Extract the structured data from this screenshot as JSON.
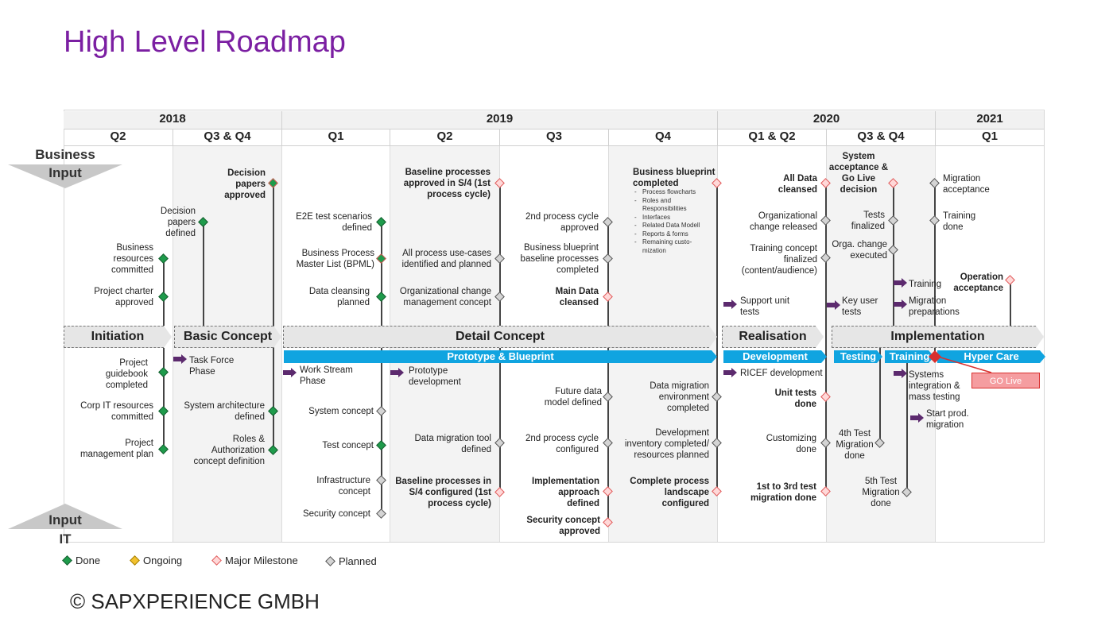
{
  "title": "High Level Roadmap",
  "footer": "© SAPXPERIENCE GMBH",
  "years": [
    "2018",
    "2019",
    "2020",
    "2021"
  ],
  "quarters": [
    "Q2",
    "Q3 & Q4",
    "Q1",
    "Q2",
    "Q3",
    "Q4",
    "Q1 & Q2",
    "Q3 & Q4",
    "Q1"
  ],
  "side_labels": {
    "business_line1": "Business",
    "business_line2": "Input",
    "it_line1": "Input",
    "it_line2": "IT"
  },
  "phases": [
    "Initiation",
    "Basic Concept",
    "Detail Concept",
    "Realisation",
    "Implementation"
  ],
  "workstreams": [
    "Prototype & Blueprint",
    "Development",
    "Testing",
    "Training",
    "Hyper Care"
  ],
  "business_items": {
    "decision_papers_approved": "Decision papers approved",
    "decision_papers_defined": "Decision papers defined",
    "business_resources": "Business resources committed",
    "project_charter": "Project charter approved",
    "e2e_test": "E2E test scenarios defined",
    "bpml": "Business Process Master List (BPML)",
    "data_cleansing_planned": "Data cleansing planned",
    "baseline_approved": "Baseline processes approved in S/4 (1st process cycle)",
    "use_cases": "All process use-cases identified and planned",
    "org_change_concept": "Organizational change management concept",
    "second_cycle_approved": "2nd process cycle approved",
    "blueprint_baseline": "Business blueprint baseline processes completed",
    "main_data_cleansed": "Main Data cleansed",
    "blueprint_completed": "Business blueprint completed",
    "all_data_cleansed": "All Data cleansed",
    "org_change_released": "Organizational change released",
    "training_concept": "Training concept finalized (content/audience)",
    "support_unit_tests": "Support unit tests",
    "system_acceptance": "System acceptance & Go Live decision",
    "tests_finalized": "Tests finalized",
    "orga_change_executed": "Orga. change executed",
    "key_user_tests": "Key user tests",
    "training": "Training",
    "migration_preparations": "Migration preparations",
    "migration_acceptance": "Migration acceptance",
    "training_done": "Training done",
    "operation_acceptance": "Operation acceptance"
  },
  "blueprint_list": [
    "Process flowcharts",
    "Roles and Responsibilities",
    "Interfaces",
    "Related Data Modell",
    "Reports & forms",
    "Remaining custo-mization"
  ],
  "it_items": {
    "project_guidebook": "Project guidebook completed",
    "corp_it": "Corp IT resources committed",
    "project_mgmt_plan": "Project management plan",
    "task_force": "Task Force Phase",
    "system_architecture": "System architecture defined",
    "roles_authorization": "Roles & Authorization concept definition",
    "work_stream": "Work Stream Phase",
    "system_concept": "System concept",
    "test_concept": "Test concept",
    "infrastructure": "Infrastructure concept",
    "security_concept": "Security concept",
    "prototype_dev": "Prototype development",
    "data_migration_tool": "Data migration tool defined",
    "baseline_configured": "Baseline processes in S/4 configured (1st process cycle)",
    "future_data_model": "Future data model defined",
    "second_cycle_configured": "2nd process cycle configured",
    "implementation_approach": "Implementation approach defined",
    "security_concept_approved": "Security concept approved",
    "data_migration_env": "Data migration environment completed",
    "dev_inventory": "Development inventory completed/ resources planned",
    "complete_landscape": "Complete process landscape configured",
    "ricef": "RICEF development",
    "unit_tests_done": "Unit tests done",
    "customizing_done": "Customizing done",
    "migration_1_3": "1st to 3rd test migration done",
    "fourth_migration": "4th Test Migration done",
    "fifth_migration": "5th Test Migration done",
    "systems_integration": "Systems integration & mass testing",
    "start_prod_migration": "Start prod. migration",
    "go_live": "GO Live"
  },
  "legend": [
    "Done",
    "Ongoing",
    "Major Milestone",
    "Planned"
  ],
  "colors": {
    "title": "#7b1fa2",
    "done": "#1e9b4b",
    "ongoing": "#f2c12e",
    "major": "#e05a5a",
    "planned": "#d4d4d4",
    "workstream_blue": "#10a4e0",
    "arrow_purple": "#5c2a6e",
    "go_live": "#d9302f"
  }
}
